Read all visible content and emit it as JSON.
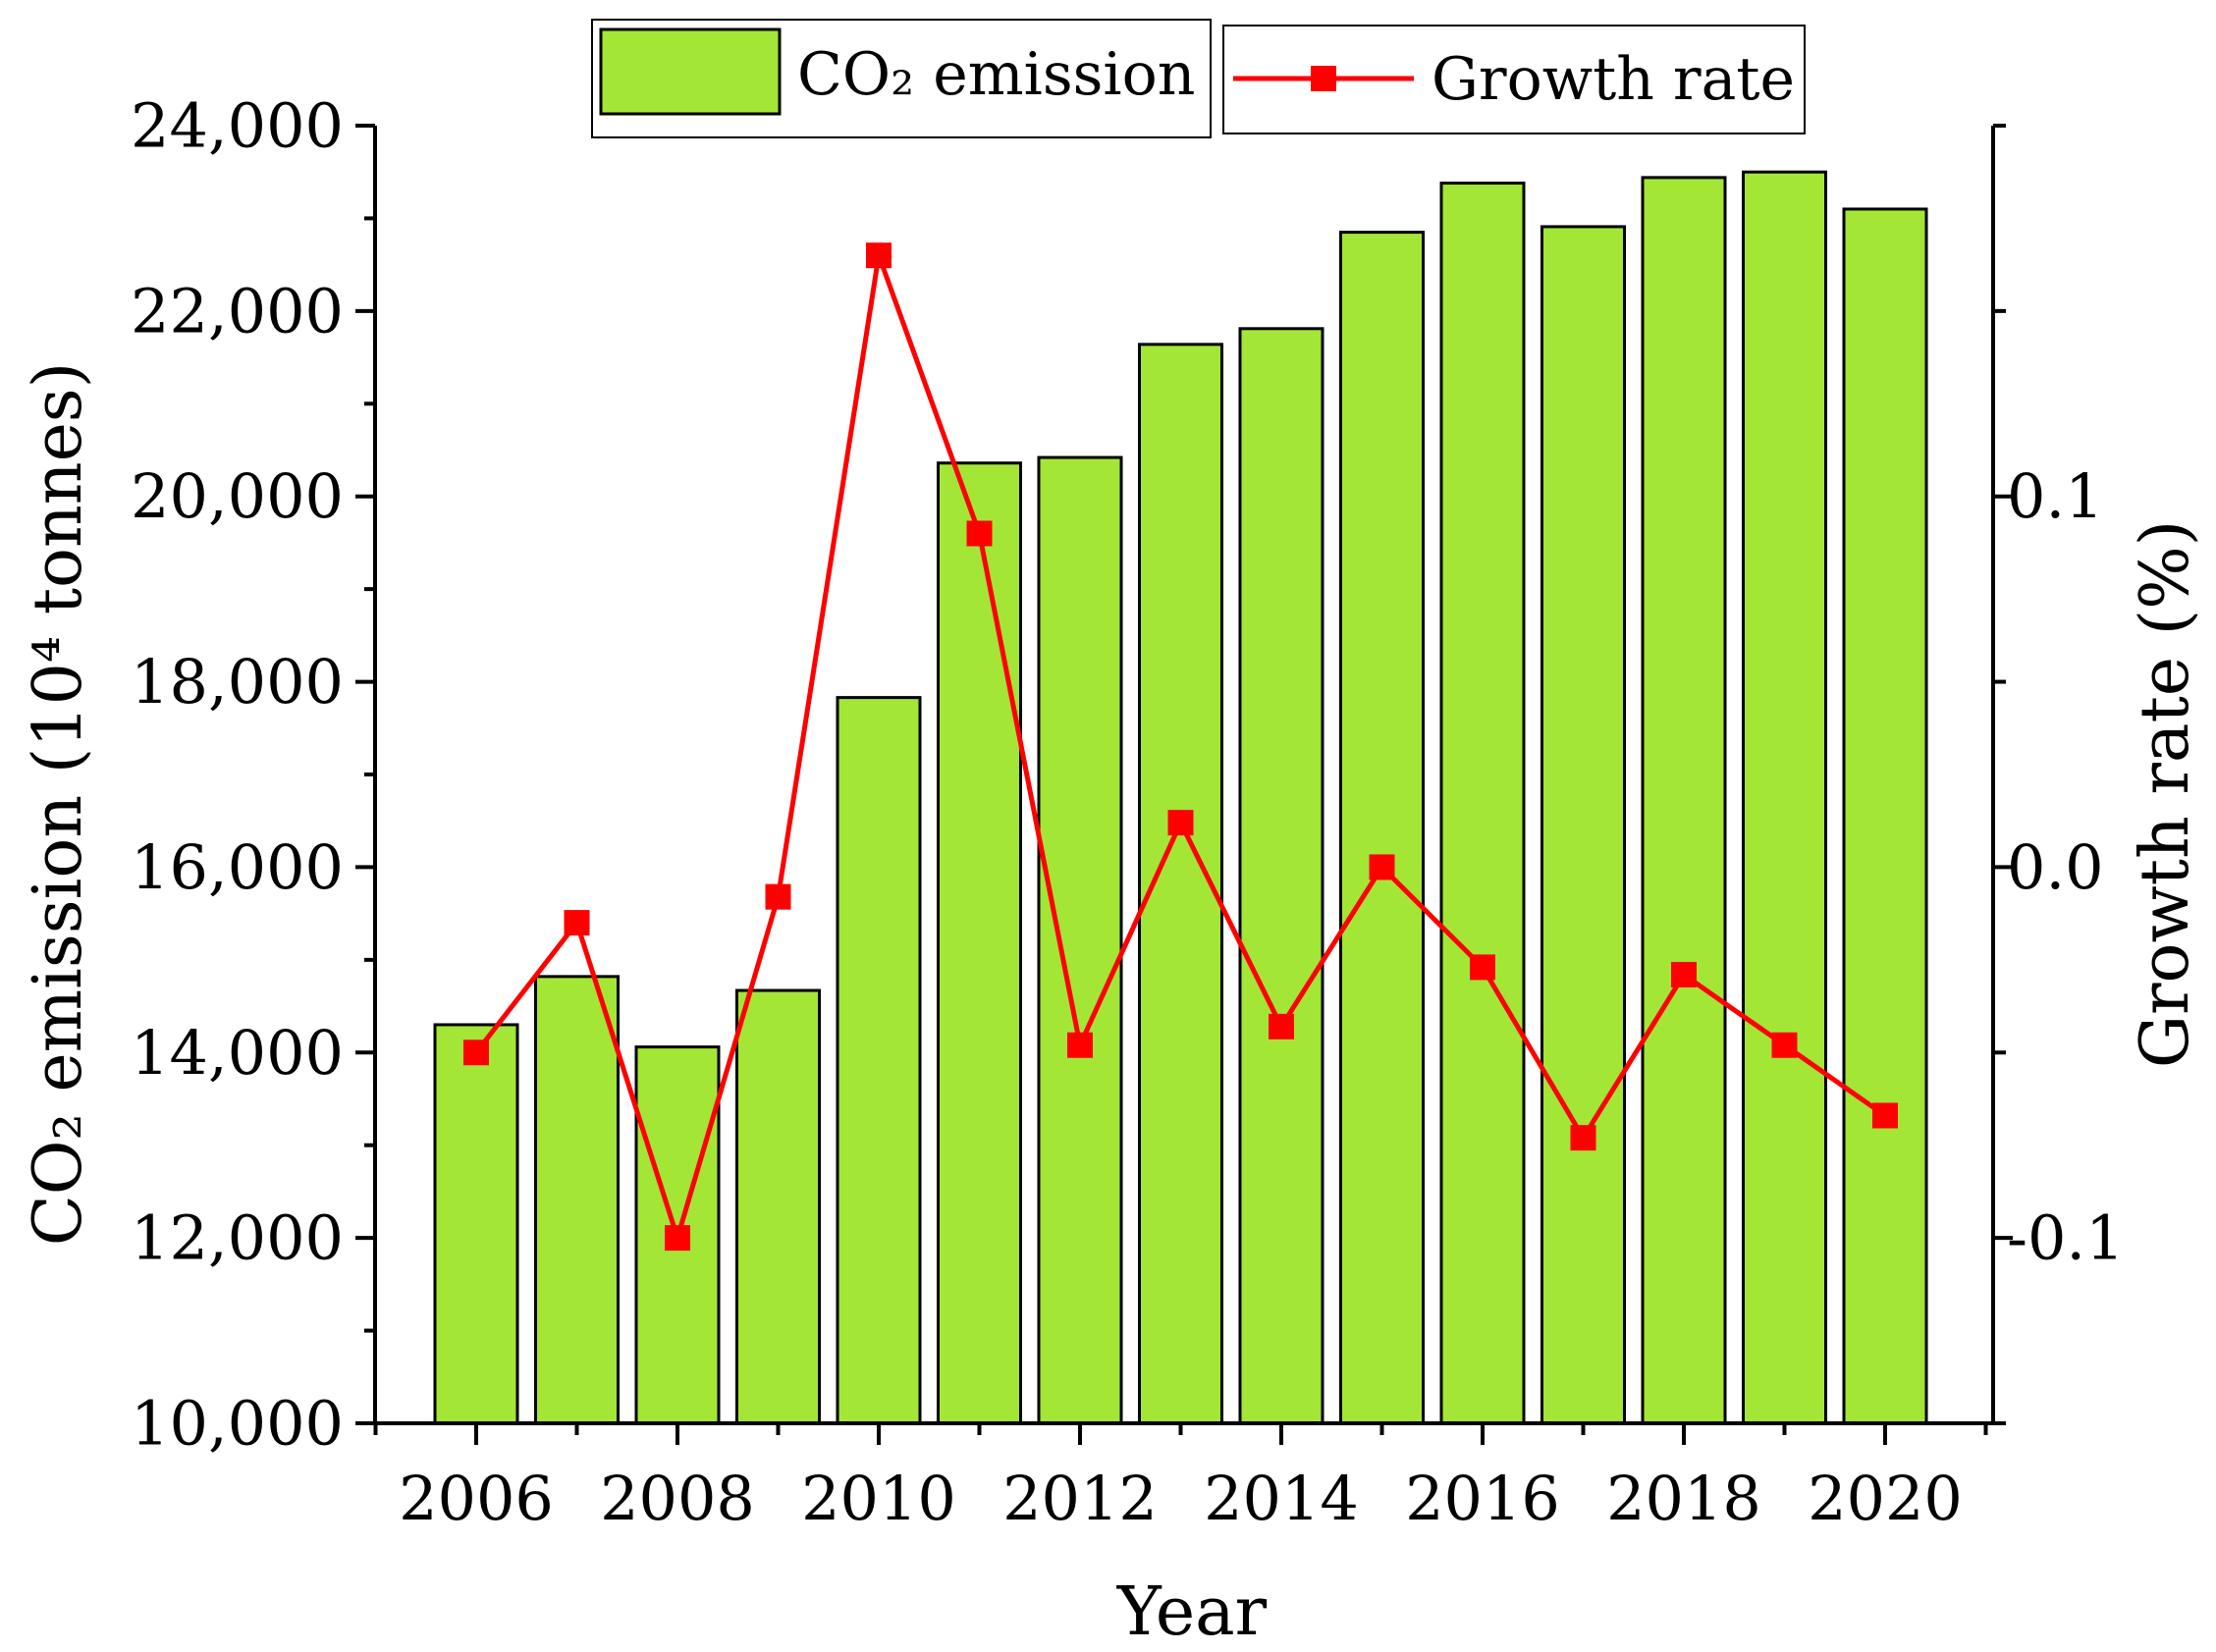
{
  "chart_data": {
    "type": "bar",
    "categories": [
      "2006",
      "2007",
      "2008",
      "2009",
      "2010",
      "2011",
      "2012",
      "2013",
      "2014",
      "2015",
      "2016",
      "2017",
      "2018",
      "2019",
      "2020"
    ],
    "series": [
      {
        "name": "CO₂ emission",
        "type": "bar",
        "axis": "left",
        "color": "#a3e635",
        "values": [
          14300,
          14820,
          14060,
          14670,
          17830,
          20360,
          20420,
          21640,
          21810,
          22850,
          23380,
          22910,
          23440,
          23500,
          23100
        ]
      },
      {
        "name": "Growth rate",
        "type": "line",
        "axis": "right",
        "color": "#ff0000",
        "marker": "square",
        "values": [
          -0.05,
          -0.015,
          -0.1,
          -0.008,
          0.165,
          0.09,
          -0.048,
          0.012,
          -0.043,
          0.0,
          -0.027,
          -0.073,
          -0.029,
          -0.048,
          -0.067
        ]
      }
    ],
    "xlabel": "Year",
    "ylabel": "CO₂ emission (10⁴ tonnes)",
    "y2label": "Growth rate (%)",
    "ylim": [
      10000,
      24000
    ],
    "y2lim": [
      -0.15,
      0.2
    ],
    "xticks": [
      "2006",
      "2008",
      "2010",
      "2012",
      "2014",
      "2016",
      "2018",
      "2020"
    ],
    "yticks": [
      "10,000",
      "12,000",
      "14,000",
      "16,000",
      "18,000",
      "20,000",
      "22,000",
      "24,000"
    ],
    "y2ticks": [
      "-0.1",
      "0.0",
      "0.1"
    ],
    "legend": {
      "placement": "top-center",
      "entries": [
        "CO₂ emission",
        "Growth rate"
      ]
    },
    "grid": false
  }
}
